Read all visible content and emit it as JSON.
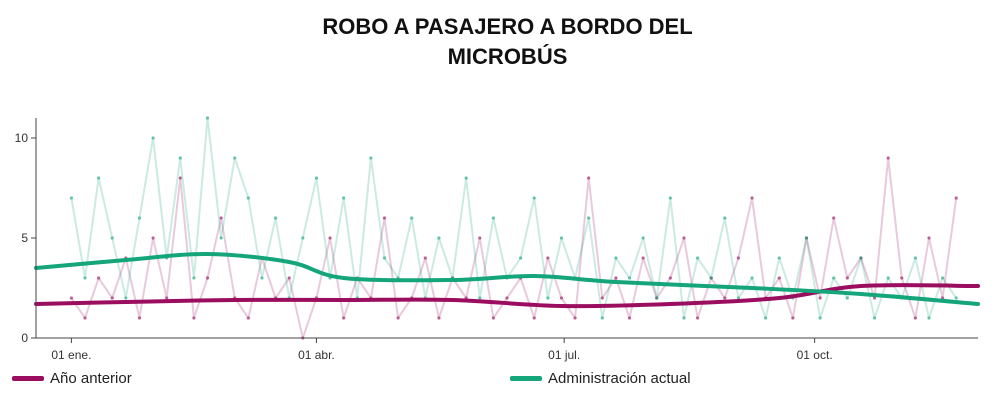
{
  "title_line1": "ROBO A PASAJERO A BORDO DEL",
  "title_line2": "MICROBÚS",
  "legend": [
    {
      "label": "Año anterior",
      "color": "#9b0d5f"
    },
    {
      "label": "Administración actual",
      "color": "#14a57a"
    }
  ],
  "chart_data": {
    "type": "line",
    "title": "ROBO A PASAJERO A BORDO DEL MICROBÚS",
    "x_ticks": [
      "01 ene.",
      "01 abr.",
      "01 jul.",
      "01 oct."
    ],
    "y_ticks": [
      0,
      5,
      10
    ],
    "ylim": [
      0,
      11
    ],
    "xlim": [
      -13,
      333
    ],
    "grid": false,
    "legend_placement": "bottom",
    "series": [
      {
        "name": "Año anterior",
        "color": "#9b0d5f",
        "daily_sparse_samples": [
          [
            0,
            2
          ],
          [
            5,
            1
          ],
          [
            10,
            3
          ],
          [
            15,
            2
          ],
          [
            20,
            4
          ],
          [
            25,
            1
          ],
          [
            30,
            5
          ],
          [
            35,
            2
          ],
          [
            40,
            8
          ],
          [
            45,
            1
          ],
          [
            50,
            3
          ],
          [
            55,
            6
          ],
          [
            60,
            2
          ],
          [
            65,
            1
          ],
          [
            70,
            4
          ],
          [
            75,
            2
          ],
          [
            80,
            3
          ],
          [
            85,
            0
          ],
          [
            90,
            2
          ],
          [
            95,
            5
          ],
          [
            100,
            1
          ],
          [
            105,
            3
          ],
          [
            110,
            2
          ],
          [
            115,
            6
          ],
          [
            120,
            1
          ],
          [
            125,
            2
          ],
          [
            130,
            4
          ],
          [
            135,
            1
          ],
          [
            140,
            3
          ],
          [
            145,
            2
          ],
          [
            150,
            5
          ],
          [
            155,
            1
          ],
          [
            160,
            2
          ],
          [
            165,
            3
          ],
          [
            170,
            1
          ],
          [
            175,
            4
          ],
          [
            180,
            2
          ],
          [
            185,
            1
          ],
          [
            190,
            8
          ],
          [
            195,
            2
          ],
          [
            200,
            3
          ],
          [
            205,
            1
          ],
          [
            210,
            4
          ],
          [
            215,
            2
          ],
          [
            220,
            3
          ],
          [
            225,
            5
          ],
          [
            230,
            1
          ],
          [
            235,
            3
          ],
          [
            240,
            2
          ],
          [
            245,
            4
          ],
          [
            250,
            7
          ],
          [
            255,
            2
          ],
          [
            260,
            3
          ],
          [
            265,
            1
          ],
          [
            270,
            5
          ],
          [
            275,
            2
          ],
          [
            280,
            6
          ],
          [
            285,
            3
          ],
          [
            290,
            4
          ],
          [
            295,
            2
          ],
          [
            300,
            9
          ],
          [
            305,
            3
          ],
          [
            310,
            1
          ],
          [
            315,
            5
          ],
          [
            320,
            2
          ],
          [
            325,
            7
          ]
        ],
        "trend_x": [
          -13,
          20,
          60,
          100,
          140,
          180,
          220,
          260,
          290,
          333
        ],
        "trend_y": [
          1.7,
          1.8,
          1.9,
          1.9,
          1.9,
          1.6,
          1.7,
          2.0,
          2.6,
          2.6
        ]
      },
      {
        "name": "Administración actual",
        "color": "#14a57a",
        "daily_sparse_samples": [
          [
            0,
            7
          ],
          [
            5,
            3
          ],
          [
            10,
            8
          ],
          [
            15,
            5
          ],
          [
            20,
            2
          ],
          [
            25,
            6
          ],
          [
            30,
            10
          ],
          [
            35,
            4
          ],
          [
            40,
            9
          ],
          [
            45,
            3
          ],
          [
            50,
            11
          ],
          [
            55,
            5
          ],
          [
            60,
            9
          ],
          [
            65,
            7
          ],
          [
            70,
            3
          ],
          [
            75,
            6
          ],
          [
            80,
            2
          ],
          [
            85,
            5
          ],
          [
            90,
            8
          ],
          [
            95,
            3
          ],
          [
            100,
            7
          ],
          [
            105,
            2
          ],
          [
            110,
            9
          ],
          [
            115,
            4
          ],
          [
            120,
            3
          ],
          [
            125,
            6
          ],
          [
            130,
            2
          ],
          [
            135,
            5
          ],
          [
            140,
            3
          ],
          [
            145,
            8
          ],
          [
            150,
            2
          ],
          [
            155,
            6
          ],
          [
            160,
            3
          ],
          [
            165,
            4
          ],
          [
            170,
            7
          ],
          [
            175,
            2
          ],
          [
            180,
            5
          ],
          [
            185,
            3
          ],
          [
            190,
            6
          ],
          [
            195,
            1
          ],
          [
            200,
            4
          ],
          [
            205,
            3
          ],
          [
            210,
            5
          ],
          [
            215,
            2
          ],
          [
            220,
            7
          ],
          [
            225,
            1
          ],
          [
            230,
            4
          ],
          [
            235,
            3
          ],
          [
            240,
            6
          ],
          [
            245,
            2
          ],
          [
            250,
            3
          ],
          [
            255,
            1
          ],
          [
            260,
            4
          ],
          [
            265,
            2
          ],
          [
            270,
            5
          ],
          [
            275,
            1
          ],
          [
            280,
            3
          ],
          [
            285,
            2
          ],
          [
            290,
            4
          ],
          [
            295,
            1
          ],
          [
            300,
            3
          ],
          [
            305,
            2
          ],
          [
            310,
            4
          ],
          [
            315,
            1
          ],
          [
            320,
            3
          ],
          [
            325,
            2
          ]
        ],
        "trend_x": [
          -13,
          20,
          50,
          80,
          100,
          140,
          170,
          200,
          250,
          290,
          333
        ],
        "trend_y": [
          3.5,
          3.9,
          4.2,
          3.8,
          3.0,
          2.9,
          3.1,
          2.8,
          2.5,
          2.2,
          1.7
        ]
      }
    ]
  }
}
